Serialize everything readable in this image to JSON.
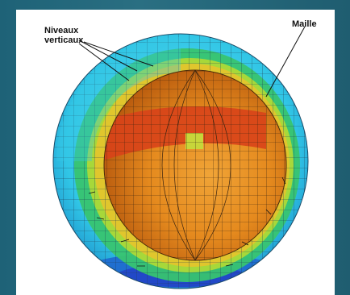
{
  "labels": {
    "niveaux_line1": "Niveaux",
    "niveaux_line2": "verticaux",
    "maille": "Maille"
  },
  "colors": {
    "background": "#1d5a6e",
    "panel": "#ffffff",
    "outer_shell_cyan": "#27c6e6",
    "outer_shell_blue": "#1f7fd6",
    "shell_green": "#3fc86a",
    "shell_yellow": "#cfe03a",
    "inner_orange": "#e8901e",
    "inner_red": "#d93a16",
    "mesh_line": "#2a2a2a"
  }
}
